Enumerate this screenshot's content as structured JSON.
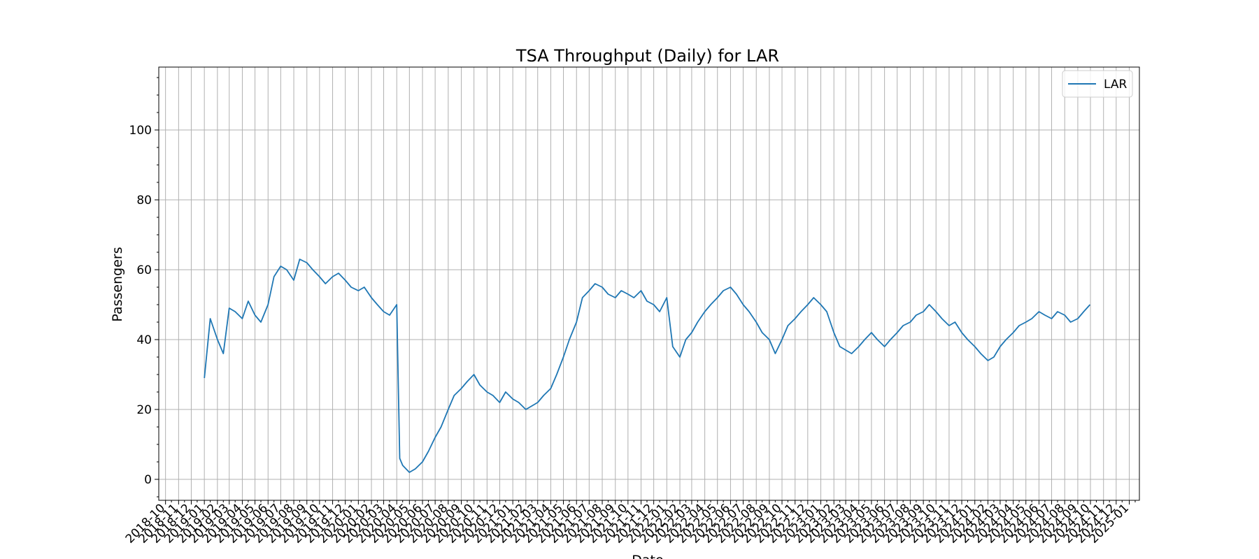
{
  "chart_data": {
    "type": "line",
    "title": "TSA Throughput (Daily) for LAR",
    "xlabel": "Date",
    "ylabel": "Passengers",
    "ylim": [
      -6,
      118
    ],
    "xlim": [
      "2018-09-15",
      "2025-01-25"
    ],
    "y_ticks": [
      0,
      20,
      40,
      60,
      80,
      100
    ],
    "x_ticks": [
      "2018-10",
      "2018-11",
      "2018-12",
      "2019-01",
      "2019-02",
      "2019-03",
      "2019-04",
      "2019-05",
      "2019-06",
      "2019-07",
      "2019-08",
      "2019-09",
      "2019-10",
      "2019-11",
      "2019-12",
      "2020-01",
      "2020-02",
      "2020-03",
      "2020-04",
      "2020-05",
      "2020-06",
      "2020-07",
      "2020-08",
      "2020-09",
      "2020-10",
      "2020-11",
      "2020-12",
      "2021-01",
      "2021-02",
      "2021-03",
      "2021-04",
      "2021-05",
      "2021-06",
      "2021-07",
      "2021-08",
      "2021-09",
      "2021-10",
      "2021-11",
      "2021-12",
      "2022-01",
      "2022-02",
      "2022-03",
      "2022-04",
      "2022-05",
      "2022-06",
      "2022-07",
      "2022-08",
      "2022-09",
      "2022-10",
      "2022-11",
      "2022-12",
      "2023-01",
      "2023-02",
      "2023-03",
      "2023-04",
      "2023-05",
      "2023-06",
      "2023-07",
      "2023-08",
      "2023-09",
      "2023-10",
      "2023-11",
      "2023-12",
      "2024-01",
      "2024-02",
      "2024-03",
      "2024-04",
      "2024-05",
      "2024-06",
      "2024-07",
      "2024-08",
      "2024-09",
      "2024-10",
      "2024-11",
      "2024-12",
      "2025-01"
    ],
    "x_tick_labels": [
      "2018-10",
      "2018-11",
      "2018-12",
      "2019-01",
      "2019-02",
      "2019-03",
      "2019-04",
      "2019-05",
      "2019-06",
      "2019-07",
      "2019-08",
      "2019-09",
      "2019-10",
      "2019-11",
      "2019-12",
      "2020-01",
      "2020-02",
      "2020-03",
      "2020-04",
      "2020-05",
      "2020-06",
      "2020-07",
      "2020-08",
      "2020-09",
      "2020-10",
      "2020-11",
      "2020-12",
      "2021-01",
      "2021-02",
      "2021-03",
      "2021-04",
      "2021-05",
      "2021-06",
      "2021-07",
      "2021-08",
      "2021-09",
      "2021-10",
      "2021-11",
      "2021-12",
      "2022-01",
      "2022-02",
      "2022-03",
      "2022-04",
      "2022-05",
      "2022-06",
      "2022-07",
      "2022-08",
      "2022-09",
      "2022-10",
      "2022-11",
      "2022-12",
      "2023-01",
      "2023-02",
      "2023-03",
      "2023-04",
      "2023-05",
      "2023-06",
      "2023-07",
      "2023-08",
      "2023-09",
      "2023-10",
      "2023-11",
      "2023-12",
      "2024-01",
      "2024-02",
      "2024-03",
      "2024-04",
      "2024-05",
      "2024-06",
      "2024-07",
      "2024-08",
      "2024-09",
      "2024-10",
      "2024-11",
      "2024-12",
      "2025-01"
    ],
    "grid": true,
    "legend": "top-right",
    "series": [
      {
        "name": "LAR",
        "color": "#1f77b4",
        "points": [
          [
            "2019-01-01",
            29
          ],
          [
            "2019-01-15",
            46
          ],
          [
            "2019-02-01",
            40
          ],
          [
            "2019-02-15",
            36
          ],
          [
            "2019-03-01",
            49
          ],
          [
            "2019-03-15",
            48
          ],
          [
            "2019-04-01",
            46
          ],
          [
            "2019-04-15",
            51
          ],
          [
            "2019-05-01",
            47
          ],
          [
            "2019-05-15",
            45
          ],
          [
            "2019-06-01",
            50
          ],
          [
            "2019-06-15",
            58
          ],
          [
            "2019-07-01",
            61
          ],
          [
            "2019-07-15",
            60
          ],
          [
            "2019-08-01",
            57
          ],
          [
            "2019-08-15",
            63
          ],
          [
            "2019-09-01",
            62
          ],
          [
            "2019-09-15",
            60
          ],
          [
            "2019-10-01",
            58
          ],
          [
            "2019-10-15",
            56
          ],
          [
            "2019-11-01",
            58
          ],
          [
            "2019-11-15",
            59
          ],
          [
            "2019-12-01",
            57
          ],
          [
            "2019-12-15",
            55
          ],
          [
            "2020-01-01",
            54
          ],
          [
            "2020-01-15",
            55
          ],
          [
            "2020-02-01",
            52
          ],
          [
            "2020-02-15",
            50
          ],
          [
            "2020-03-01",
            48
          ],
          [
            "2020-03-15",
            47
          ],
          [
            "2020-04-01",
            50
          ],
          [
            "2020-04-08",
            6
          ],
          [
            "2020-04-15",
            4
          ],
          [
            "2020-05-01",
            2
          ],
          [
            "2020-05-15",
            3
          ],
          [
            "2020-06-01",
            5
          ],
          [
            "2020-06-15",
            8
          ],
          [
            "2020-07-01",
            12
          ],
          [
            "2020-07-15",
            15
          ],
          [
            "2020-08-01",
            20
          ],
          [
            "2020-08-15",
            24
          ],
          [
            "2020-09-01",
            26
          ],
          [
            "2020-09-15",
            28
          ],
          [
            "2020-10-01",
            30
          ],
          [
            "2020-10-15",
            27
          ],
          [
            "2020-11-01",
            25
          ],
          [
            "2020-11-15",
            24
          ],
          [
            "2020-12-01",
            22
          ],
          [
            "2020-12-15",
            25
          ],
          [
            "2021-01-01",
            23
          ],
          [
            "2021-01-15",
            22
          ],
          [
            "2021-02-01",
            20
          ],
          [
            "2021-02-15",
            21
          ],
          [
            "2021-03-01",
            22
          ],
          [
            "2021-03-15",
            24
          ],
          [
            "2021-04-01",
            26
          ],
          [
            "2021-04-15",
            30
          ],
          [
            "2021-05-01",
            35
          ],
          [
            "2021-05-15",
            40
          ],
          [
            "2021-06-01",
            45
          ],
          [
            "2021-06-15",
            52
          ],
          [
            "2021-07-01",
            54
          ],
          [
            "2021-07-15",
            56
          ],
          [
            "2021-08-01",
            55
          ],
          [
            "2021-08-15",
            53
          ],
          [
            "2021-09-01",
            52
          ],
          [
            "2021-09-15",
            54
          ],
          [
            "2021-10-01",
            53
          ],
          [
            "2021-10-15",
            52
          ],
          [
            "2021-11-01",
            54
          ],
          [
            "2021-11-15",
            51
          ],
          [
            "2021-12-01",
            50
          ],
          [
            "2021-12-15",
            48
          ],
          [
            "2022-01-01",
            52
          ],
          [
            "2022-01-15",
            38
          ],
          [
            "2022-02-01",
            35
          ],
          [
            "2022-02-15",
            40
          ],
          [
            "2022-03-01",
            42
          ],
          [
            "2022-03-15",
            45
          ],
          [
            "2022-04-01",
            48
          ],
          [
            "2022-04-15",
            50
          ],
          [
            "2022-05-01",
            52
          ],
          [
            "2022-05-15",
            54
          ],
          [
            "2022-06-01",
            55
          ],
          [
            "2022-06-15",
            53
          ],
          [
            "2022-07-01",
            50
          ],
          [
            "2022-07-15",
            48
          ],
          [
            "2022-08-01",
            45
          ],
          [
            "2022-08-15",
            42
          ],
          [
            "2022-09-01",
            40
          ],
          [
            "2022-09-15",
            36
          ],
          [
            "2022-10-01",
            40
          ],
          [
            "2022-10-15",
            44
          ],
          [
            "2022-11-01",
            46
          ],
          [
            "2022-11-15",
            48
          ],
          [
            "2022-12-01",
            50
          ],
          [
            "2022-12-15",
            52
          ],
          [
            "2023-01-01",
            50
          ],
          [
            "2023-01-15",
            48
          ],
          [
            "2023-02-01",
            42
          ],
          [
            "2023-02-15",
            38
          ],
          [
            "2023-03-01",
            37
          ],
          [
            "2023-03-15",
            36
          ],
          [
            "2023-04-01",
            38
          ],
          [
            "2023-04-15",
            40
          ],
          [
            "2023-05-01",
            42
          ],
          [
            "2023-05-15",
            40
          ],
          [
            "2023-06-01",
            38
          ],
          [
            "2023-06-15",
            40
          ],
          [
            "2023-07-01",
            42
          ],
          [
            "2023-07-15",
            44
          ],
          [
            "2023-08-01",
            45
          ],
          [
            "2023-08-15",
            47
          ],
          [
            "2023-09-01",
            48
          ],
          [
            "2023-09-15",
            50
          ],
          [
            "2023-10-01",
            48
          ],
          [
            "2023-10-15",
            46
          ],
          [
            "2023-11-01",
            44
          ],
          [
            "2023-11-15",
            45
          ],
          [
            "2023-12-01",
            42
          ],
          [
            "2023-12-15",
            40
          ],
          [
            "2024-01-01",
            38
          ],
          [
            "2024-01-15",
            36
          ],
          [
            "2024-02-01",
            34
          ],
          [
            "2024-02-15",
            35
          ],
          [
            "2024-03-01",
            38
          ],
          [
            "2024-03-15",
            40
          ],
          [
            "2024-04-01",
            42
          ],
          [
            "2024-04-15",
            44
          ],
          [
            "2024-05-01",
            45
          ],
          [
            "2024-05-15",
            46
          ],
          [
            "2024-06-01",
            48
          ],
          [
            "2024-06-15",
            47
          ],
          [
            "2024-07-01",
            46
          ],
          [
            "2024-07-15",
            48
          ],
          [
            "2024-08-01",
            47
          ],
          [
            "2024-08-15",
            45
          ],
          [
            "2024-09-01",
            46
          ],
          [
            "2024-09-15",
            48
          ],
          [
            "2024-09-30",
            50
          ]
        ]
      }
    ],
    "annotations": []
  }
}
